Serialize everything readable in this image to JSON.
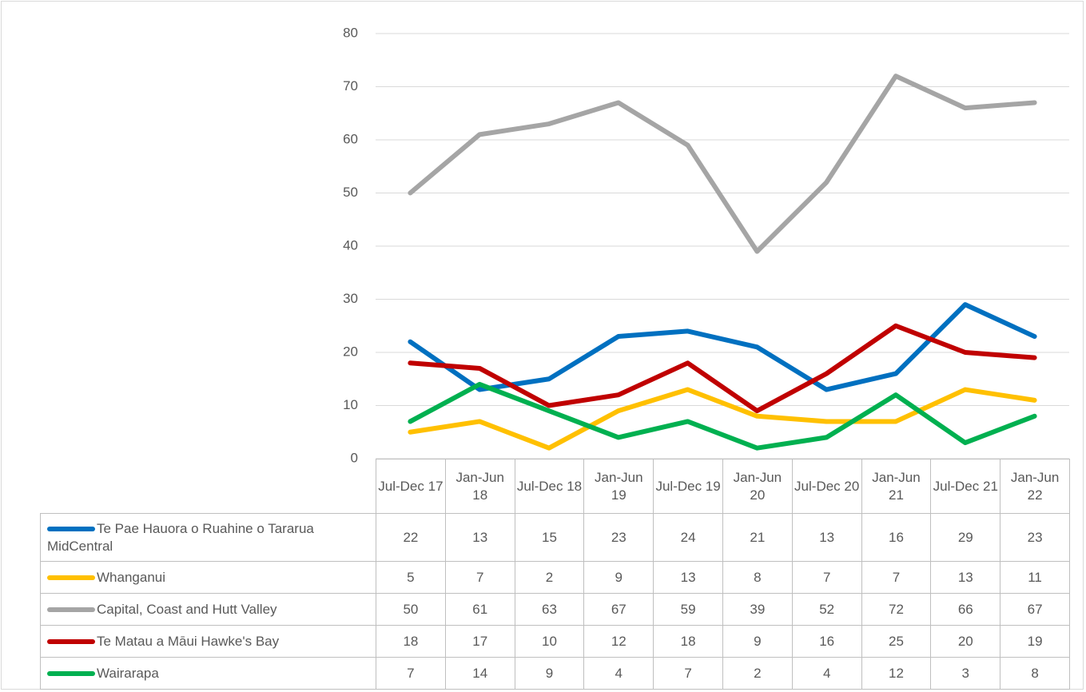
{
  "chart_data": {
    "type": "line",
    "categories": [
      "Jul-Dec 17",
      "Jan-Jun 18",
      "Jul-Dec 18",
      "Jan-Jun 19",
      "Jul-Dec 19",
      "Jan-Jun 20",
      "Jul-Dec 20",
      "Jan-Jun 21",
      "Jul-Dec 21",
      "Jan-Jun 22"
    ],
    "series": [
      {
        "name": "Te Pae Hauora o Ruahine o Tararua MidCentral",
        "color": "#0070c0",
        "values": [
          22,
          13,
          15,
          23,
          24,
          21,
          13,
          16,
          29,
          23
        ]
      },
      {
        "name": "Whanganui",
        "color": "#ffc000",
        "values": [
          5,
          7,
          2,
          9,
          13,
          8,
          7,
          7,
          13,
          11
        ]
      },
      {
        "name": "Capital, Coast and Hutt Valley",
        "color": "#a5a5a5",
        "values": [
          50,
          61,
          63,
          67,
          59,
          39,
          52,
          72,
          66,
          67
        ]
      },
      {
        "name": "Te Matau a Māui Hawke's Bay",
        "color": "#c00000",
        "values": [
          18,
          17,
          10,
          12,
          18,
          9,
          16,
          25,
          20,
          19
        ]
      },
      {
        "name": "Wairarapa",
        "color": "#00b050",
        "values": [
          7,
          14,
          9,
          4,
          7,
          2,
          4,
          12,
          3,
          8
        ]
      }
    ],
    "ylim": [
      0,
      80
    ],
    "yticks": [
      0,
      10,
      20,
      30,
      40,
      50,
      60,
      70,
      80
    ],
    "grid": true,
    "legend": "table"
  }
}
